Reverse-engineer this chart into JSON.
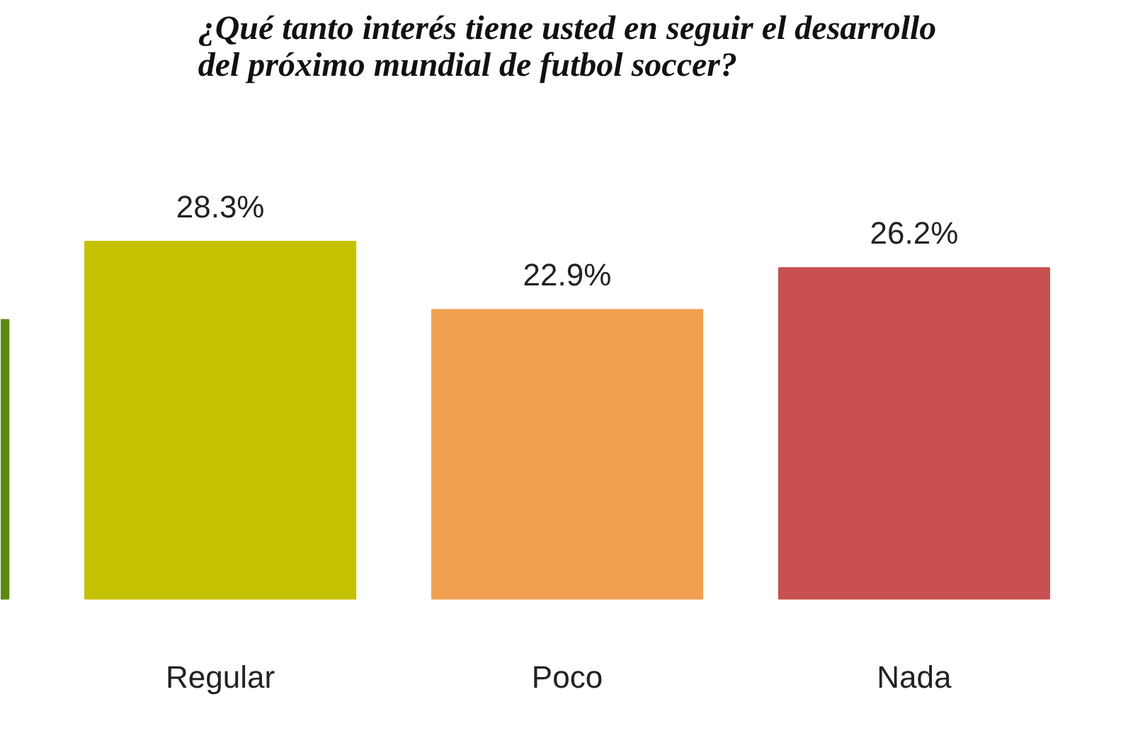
{
  "chart_data": {
    "type": "bar",
    "title": "¿Qué tanto interés tiene usted en seguir el desarrollo\ndel próximo mundial de futbol soccer?",
    "categories": [
      null,
      "Regular",
      "Poco",
      "Nada"
    ],
    "values": [
      22.1,
      28.3,
      22.9,
      26.2
    ],
    "value_labels": [
      null,
      "28.3%",
      "22.9%",
      "26.2%"
    ],
    "colors": [
      "#5a8a12",
      "#c4c200",
      "#f0a050",
      "#c85050"
    ],
    "grid": false
  }
}
